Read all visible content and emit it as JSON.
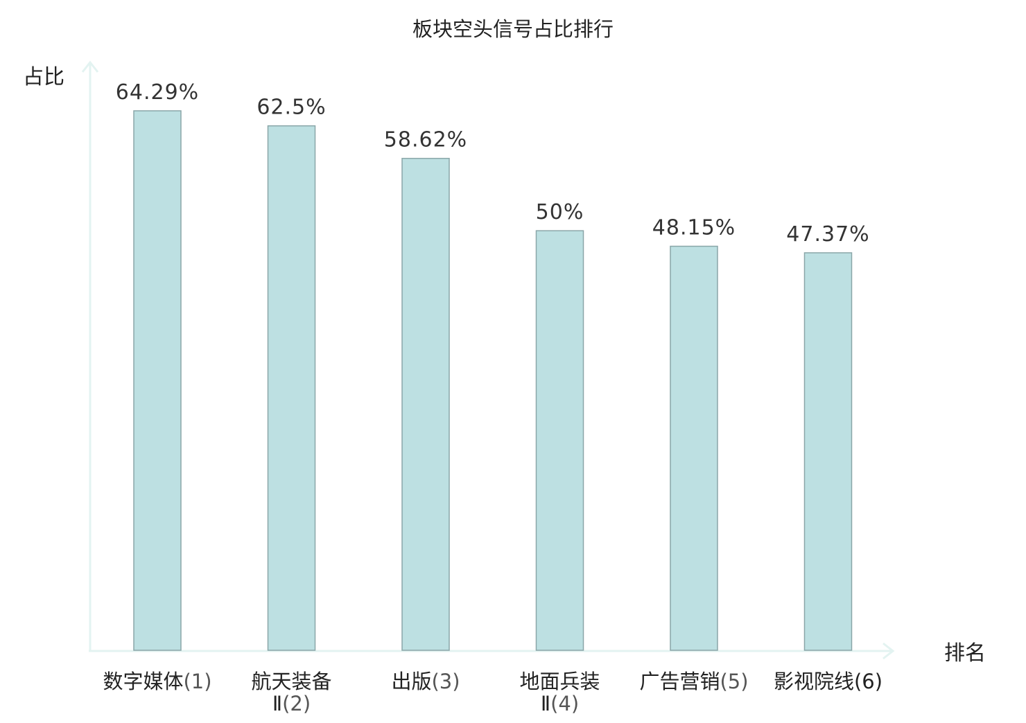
{
  "chart_data": {
    "type": "bar",
    "title": "板块空头信号占比排行",
    "ylabel": "占比",
    "xlabel": "排名",
    "ylim": [
      0,
      70
    ],
    "grid": false,
    "legend": "none",
    "categories": [
      {
        "name": "数字媒体",
        "rank": "(1)",
        "highlight": false
      },
      {
        "name": "航天装备",
        "name_line2": "Ⅱ",
        "rank": "(2)",
        "highlight": false
      },
      {
        "name": "出版",
        "rank": "(3)",
        "highlight": false
      },
      {
        "name": "地面兵装",
        "name_line2": "Ⅱ",
        "rank": "(4)",
        "highlight": false
      },
      {
        "name": "广告营销",
        "rank": "(5)",
        "highlight": false
      },
      {
        "name": "影视院线",
        "rank": "(6)",
        "highlight": true
      }
    ],
    "values": [
      64.29,
      62.5,
      58.62,
      50,
      48.15,
      47.37
    ],
    "value_labels": [
      "64.29%",
      "62.5%",
      "58.62%",
      "50%",
      "48.15%",
      "47.37%"
    ],
    "colors": {
      "bar_fill": "#bde0e2",
      "bar_stroke": "#8aa6a8",
      "axis": "#e3f3f1",
      "text": "#222222",
      "highlight": "#e01010"
    }
  }
}
